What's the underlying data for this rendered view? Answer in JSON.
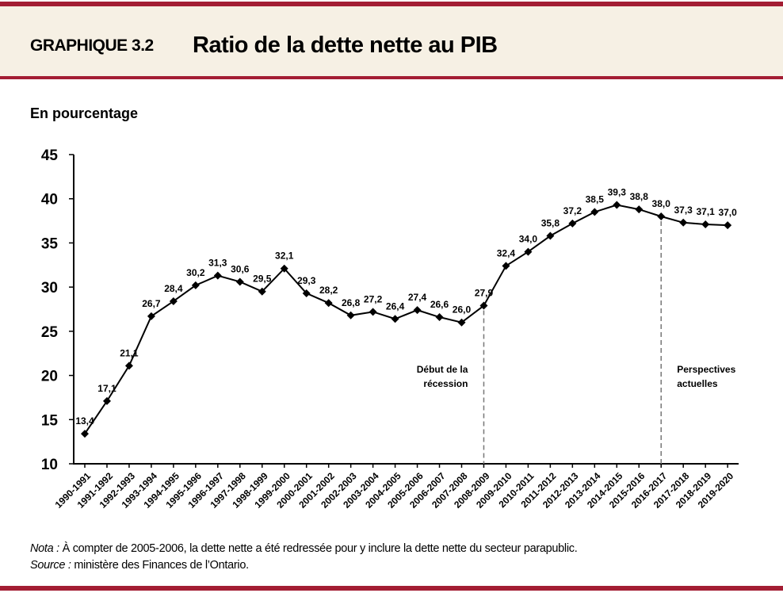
{
  "header": {
    "code": "GRAPHIQUE 3.2",
    "title": "Ratio de la dette nette au PIB"
  },
  "colors": {
    "accent": "#a31d33",
    "header_bg": "#f6f0e4",
    "line": "#000000"
  },
  "chart_data": {
    "type": "line",
    "title": "Ratio de la dette nette au PIB",
    "ylabel": "En pourcentage",
    "ylim": [
      10,
      45
    ],
    "yticks": [
      10,
      15,
      20,
      25,
      30,
      35,
      40,
      45
    ],
    "grid": false,
    "categories": [
      "1990-1991",
      "1991-1992",
      "1992-1993",
      "1993-1994",
      "1994-1995",
      "1995-1996",
      "1996-1997",
      "1997-1998",
      "1998-1999",
      "1999-2000",
      "2000-2001",
      "2001-2002",
      "2002-2003",
      "2003-2004",
      "2004-2005",
      "2005-2006",
      "2006-2007",
      "2007-2008",
      "2008-2009",
      "2009-2010",
      "2010-2011",
      "2011-2012",
      "2012-2013",
      "2013-2014",
      "2014-2015",
      "2015-2016",
      "2016-2017",
      "2017-2018",
      "2018-2019",
      "2019-2020"
    ],
    "values": [
      13.4,
      17.1,
      21.1,
      26.7,
      28.4,
      30.2,
      31.3,
      30.6,
      29.5,
      32.1,
      29.3,
      28.2,
      26.8,
      27.2,
      26.4,
      27.4,
      26.6,
      26.0,
      27.9,
      32.4,
      34.0,
      35.8,
      37.2,
      38.5,
      39.3,
      38.8,
      38.0,
      37.3,
      37.1,
      37.0
    ],
    "data_labels": [
      "13,4",
      "17,1",
      "21,1",
      "26,7",
      "28,4",
      "30,2",
      "31,3",
      "30,6",
      "29,5",
      "32,1",
      "29,3",
      "28,2",
      "26,8",
      "27,2",
      "26,4",
      "27,4",
      "26,6",
      "26,0",
      "27,9",
      "32,4",
      "34,0",
      "35,8",
      "37,2",
      "38,5",
      "39,3",
      "38,8",
      "38,0",
      "37,3",
      "37,1",
      "37,0"
    ],
    "annotations": [
      {
        "category": "2008-2009",
        "lines": [
          "Début de la",
          "récession"
        ]
      },
      {
        "category": "2016-2017",
        "lines": [
          "Perspectives",
          "actuelles"
        ]
      }
    ]
  },
  "notes": {
    "nota_label": "Nota :",
    "nota_text": " À compter de 2005-2006, la dette nette a été redressée pour y inclure la dette nette du secteur parapublic.",
    "source_label": "Source :",
    "source_text": " ministère des Finances de l’Ontario."
  }
}
